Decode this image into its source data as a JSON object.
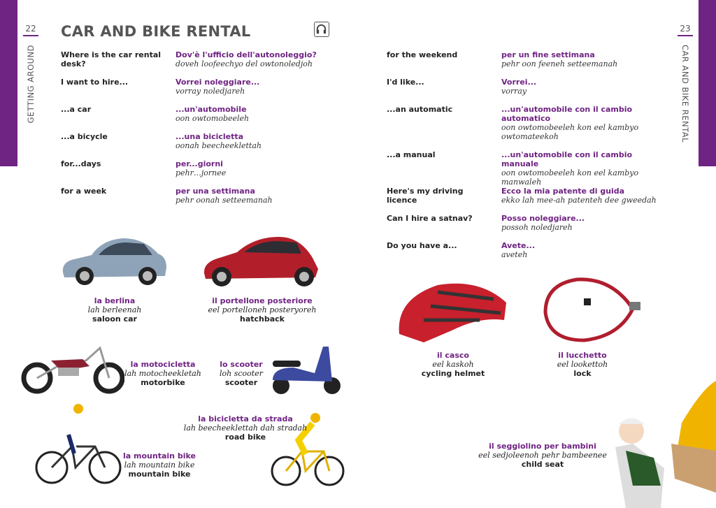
{
  "colors": {
    "accent": "#6f2383"
  },
  "left_page": {
    "page_number": "22",
    "section": "GETTING AROUND",
    "title": "CAR AND BIKE RENTAL",
    "audio_icon": "headphones-icon",
    "phrases": [
      {
        "en": "Where is the car rental desk?",
        "it": "Dov'è l'ufficio dell'autonoleggio?",
        "pron": "doveh loofeechyo del owtonoledjoh"
      },
      {
        "en": "I want to hire...",
        "it": "Vorrei noleggiare...",
        "pron": "vorray noledjareh"
      },
      {
        "en": "...a car",
        "it": "...un'automobile",
        "pron": "oon owtomobeeleh"
      },
      {
        "en": "...a bicycle",
        "it": "...una bicicletta",
        "pron": "oonah beecheeklettah"
      },
      {
        "en": "for...days",
        "it": "per...giorni",
        "pron": "pehr…jornee"
      },
      {
        "en": "for a week",
        "it": "per una settimana",
        "pron": "pehr oonah setteemanah"
      }
    ],
    "pictures": [
      {
        "it": "la berlina",
        "pron": "lah berleenah",
        "en": "saloon car"
      },
      {
        "it": "il portellone posteriore",
        "pron": "eel portelloneh posteryoreh",
        "en": "hatchback"
      },
      {
        "it": "la motocicletta",
        "pron": "lah motocheekletah",
        "en": "motorbike"
      },
      {
        "it": "lo scooter",
        "pron": "loh scooter",
        "en": "scooter"
      },
      {
        "it": "la mountain bike",
        "pron": "lah mountain bike",
        "en": "mountain bike"
      },
      {
        "it": "la bicicletta da strada",
        "pron": "lah beecheeklettah dah stradah",
        "en": "road bike"
      }
    ]
  },
  "right_page": {
    "page_number": "23",
    "section": "CAR AND BIKE RENTAL",
    "phrases": [
      {
        "en": "for the weekend",
        "it": "per un fine settimana",
        "pron": "pehr oon feeneh setteemanah"
      },
      {
        "en": "I'd like...",
        "it": "Vorrei...",
        "pron": "vorray"
      },
      {
        "en": "...an automatic",
        "it": "...un'automobile con il cambio automatico",
        "pron": "oon owtomobeeleh kon eel kambyo owtomateekoh"
      },
      {
        "en": "...a manual",
        "it": "...un'automobile con il cambio manuale",
        "pron": "oon owtomobeeleh kon eel kambyo manwaleh"
      },
      {
        "en": "Here's my driving licence",
        "it": "Ecco la mia patente di guida",
        "pron": "ekko lah mee-ah patenteh dee gweedah"
      },
      {
        "en": "Can I hire a satnav?",
        "it": "Posso noleggiare...",
        "pron": "possoh noledjareh"
      },
      {
        "en": "Do you have a...",
        "it": "Avete...",
        "pron": "aveteh"
      }
    ],
    "pictures": [
      {
        "it": "il casco",
        "pron": "eel kaskoh",
        "en": "cycling helmet"
      },
      {
        "it": "il lucchetto",
        "pron": "eel lookettoh",
        "en": "lock"
      },
      {
        "it": "il seggiolino per bambini",
        "pron": "eel sedjoleenoh pehr bambeenee",
        "en": "child seat"
      }
    ]
  }
}
